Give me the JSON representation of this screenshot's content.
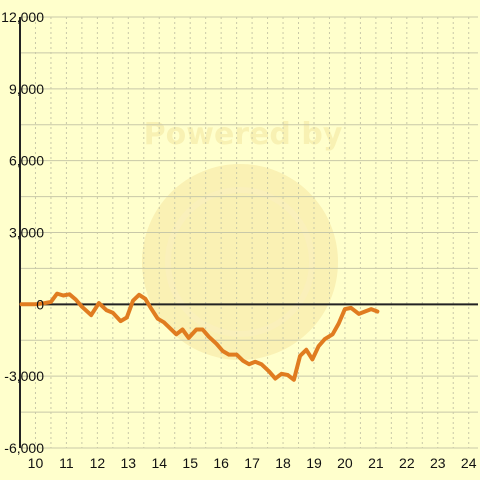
{
  "colors": {
    "background": "#ffffcc",
    "grid": "#c8c8a8",
    "axis": "#222222",
    "zero_line": "#222222",
    "series": "#e07c20",
    "watermark": "#f3e6a0"
  },
  "watermark": {
    "text": "Powered by",
    "logo_icon": "coin-logo-icon"
  },
  "chart_data": {
    "type": "line",
    "title": "",
    "xlabel": "",
    "ylabel": "",
    "xlim": [
      9.5,
      24.3
    ],
    "ylim": [
      -6000,
      12000
    ],
    "grid": true,
    "legend": "none",
    "x_ticks": [
      {
        "value": 10,
        "label": "10"
      },
      {
        "value": 11,
        "label": "11"
      },
      {
        "value": 12,
        "label": "12"
      },
      {
        "value": 13,
        "label": "13"
      },
      {
        "value": 14,
        "label": "14"
      },
      {
        "value": 15,
        "label": "15"
      },
      {
        "value": 16,
        "label": "16"
      },
      {
        "value": 17,
        "label": "17"
      },
      {
        "value": 18,
        "label": "18"
      },
      {
        "value": 19,
        "label": "19"
      },
      {
        "value": 20,
        "label": "20"
      },
      {
        "value": 21,
        "label": "21"
      },
      {
        "value": 22,
        "label": "22"
      },
      {
        "value": 23,
        "label": "23"
      },
      {
        "value": 24,
        "label": "24"
      }
    ],
    "y_ticks": [
      {
        "value": 12000,
        "label": "12,000"
      },
      {
        "value": 9000,
        "label": "9,000"
      },
      {
        "value": 6000,
        "label": "6,000"
      },
      {
        "value": 3000,
        "label": "3,000"
      },
      {
        "value": 0,
        "label": "0"
      },
      {
        "value": -3000,
        "label": "-3,000"
      },
      {
        "value": -6000,
        "label": "-6,000"
      }
    ],
    "series": [
      {
        "color": "#e07c20",
        "points": [
          [
            9.55,
            0
          ],
          [
            10.0,
            0
          ],
          [
            10.3,
            50
          ],
          [
            10.5,
            100
          ],
          [
            10.7,
            450
          ],
          [
            10.9,
            370
          ],
          [
            11.1,
            420
          ],
          [
            11.3,
            200
          ],
          [
            11.5,
            -100
          ],
          [
            11.8,
            -450
          ],
          [
            12.05,
            50
          ],
          [
            12.3,
            -250
          ],
          [
            12.5,
            -350
          ],
          [
            12.75,
            -700
          ],
          [
            12.95,
            -550
          ],
          [
            13.15,
            150
          ],
          [
            13.35,
            400
          ],
          [
            13.55,
            230
          ],
          [
            13.75,
            -200
          ],
          [
            13.95,
            -600
          ],
          [
            14.15,
            -750
          ],
          [
            14.35,
            -1000
          ],
          [
            14.55,
            -1250
          ],
          [
            14.75,
            -1050
          ],
          [
            14.95,
            -1400
          ],
          [
            15.2,
            -1050
          ],
          [
            15.4,
            -1050
          ],
          [
            15.6,
            -1350
          ],
          [
            15.85,
            -1650
          ],
          [
            16.05,
            -1950
          ],
          [
            16.25,
            -2100
          ],
          [
            16.5,
            -2100
          ],
          [
            16.7,
            -2350
          ],
          [
            16.9,
            -2500
          ],
          [
            17.1,
            -2400
          ],
          [
            17.3,
            -2500
          ],
          [
            17.55,
            -2800
          ],
          [
            17.75,
            -3100
          ],
          [
            17.95,
            -2900
          ],
          [
            18.15,
            -2950
          ],
          [
            18.35,
            -3150
          ],
          [
            18.55,
            -2150
          ],
          [
            18.75,
            -1900
          ],
          [
            18.95,
            -2300
          ],
          [
            19.15,
            -1750
          ],
          [
            19.35,
            -1450
          ],
          [
            19.6,
            -1250
          ],
          [
            19.8,
            -800
          ],
          [
            20.0,
            -200
          ],
          [
            20.2,
            -150
          ],
          [
            20.45,
            -400
          ],
          [
            20.65,
            -300
          ],
          [
            20.85,
            -200
          ],
          [
            21.05,
            -300
          ]
        ]
      }
    ]
  }
}
